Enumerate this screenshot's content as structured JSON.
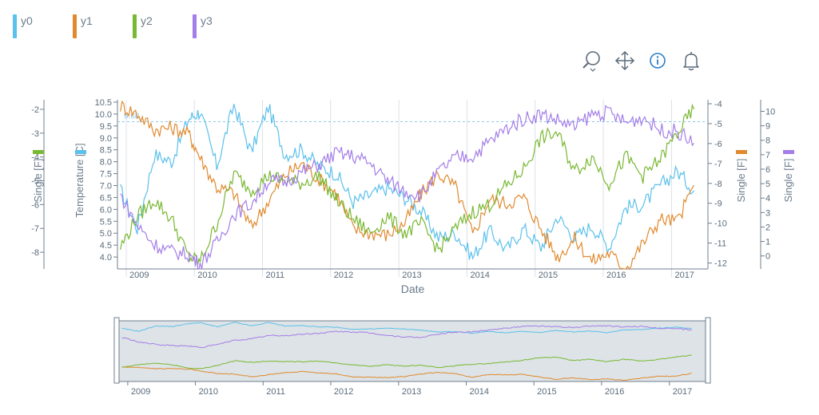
{
  "legend": [
    {
      "name": "y0",
      "color": "#5bc0eb"
    },
    {
      "name": "y1",
      "color": "#e08a2f"
    },
    {
      "name": "y2",
      "color": "#79b832"
    },
    {
      "name": "y3",
      "color": "#a47ee8"
    }
  ],
  "toolbar": [
    {
      "name": "zoom-tool",
      "icon": "magnifier-icon"
    },
    {
      "name": "pan-tool",
      "icon": "move-arrows-icon"
    },
    {
      "name": "info-tool",
      "icon": "info-circle-icon"
    },
    {
      "name": "alert-tool",
      "icon": "bell-icon"
    }
  ],
  "chart_data": {
    "type": "line",
    "xlabel": "Date",
    "x_ticks": [
      "2009",
      "2010",
      "2011",
      "2012",
      "2013",
      "2014",
      "2015",
      "2016",
      "2017"
    ],
    "xlim": [
      "2008-11-15",
      "2017-07-15"
    ],
    "reference_line": {
      "value": 9.68,
      "label": "9.68",
      "axis": "y0"
    },
    "axes": [
      {
        "id": "y2",
        "label": "Single [F]",
        "range": [
          -8.7,
          -1.6
        ],
        "ticks": [
          -8,
          -7,
          -6,
          -5,
          -4,
          -3,
          -2
        ],
        "side": "left",
        "color": "#79b832"
      },
      {
        "id": "y0",
        "label": "Temperature [C]",
        "range": [
          3.5,
          10.6
        ],
        "ticks": [
          4.0,
          4.5,
          5.0,
          5.5,
          6.0,
          6.5,
          7.0,
          7.5,
          8.0,
          8.5,
          9.0,
          9.5,
          10.0,
          10.5
        ],
        "side": "left",
        "color": "#5bc0eb"
      },
      {
        "id": "y1",
        "label": "Single [F]",
        "range": [
          -12.3,
          -3.8
        ],
        "ticks": [
          -12,
          -11,
          -10,
          -9,
          -8,
          -7,
          -6,
          -5,
          -4
        ],
        "side": "right",
        "color": "#e08a2f"
      },
      {
        "id": "y3",
        "label": "Single [F]",
        "range": [
          -0.9,
          10.8
        ],
        "ticks": [
          0,
          1,
          2,
          3,
          4,
          5,
          6,
          7,
          8,
          9,
          10
        ],
        "side": "right",
        "color": "#a47ee8"
      }
    ],
    "series": [
      {
        "name": "y0",
        "axis": "y0",
        "color": "#5bc0eb",
        "points": [
          [
            "2008-12-01",
            6.8
          ],
          [
            "2009-03-01",
            5.2
          ],
          [
            "2009-06-01",
            8.3
          ],
          [
            "2009-09-01",
            8.0
          ],
          [
            "2009-12-01",
            9.8
          ],
          [
            "2010-02-01",
            10.1
          ],
          [
            "2010-05-01",
            7.8
          ],
          [
            "2010-08-01",
            10.4
          ],
          [
            "2010-11-01",
            8.4
          ],
          [
            "2011-02-01",
            10.3
          ],
          [
            "2011-05-01",
            8.3
          ],
          [
            "2011-08-01",
            8.5
          ],
          [
            "2011-11-01",
            7.8
          ],
          [
            "2012-02-01",
            7.5
          ],
          [
            "2012-05-01",
            6.3
          ],
          [
            "2012-08-01",
            6.6
          ],
          [
            "2012-11-01",
            6.9
          ],
          [
            "2013-02-01",
            6.5
          ],
          [
            "2013-05-01",
            5.9
          ],
          [
            "2013-08-01",
            4.8
          ],
          [
            "2013-11-01",
            5.0
          ],
          [
            "2014-02-01",
            4.0
          ],
          [
            "2014-05-01",
            5.1
          ],
          [
            "2014-08-01",
            4.3
          ],
          [
            "2014-11-01",
            5.2
          ],
          [
            "2015-02-01",
            4.4
          ],
          [
            "2015-05-01",
            5.7
          ],
          [
            "2015-08-01",
            4.8
          ],
          [
            "2015-11-01",
            5.3
          ],
          [
            "2016-02-01",
            4.4
          ],
          [
            "2016-05-01",
            6.1
          ],
          [
            "2016-08-01",
            6.2
          ],
          [
            "2016-11-01",
            7.0
          ],
          [
            "2017-02-01",
            7.6
          ],
          [
            "2017-05-01",
            6.8
          ]
        ]
      },
      {
        "name": "y1",
        "axis": "y1",
        "color": "#e08a2f",
        "points": [
          [
            "2008-12-01",
            -4.1
          ],
          [
            "2009-03-01",
            -4.5
          ],
          [
            "2009-06-01",
            -5.3
          ],
          [
            "2009-09-01",
            -5.2
          ],
          [
            "2009-12-01",
            -5.5
          ],
          [
            "2010-02-01",
            -6.7
          ],
          [
            "2010-05-01",
            -8.2
          ],
          [
            "2010-08-01",
            -8.5
          ],
          [
            "2010-11-01",
            -10.2
          ],
          [
            "2011-02-01",
            -8.9
          ],
          [
            "2011-05-01",
            -7.6
          ],
          [
            "2011-08-01",
            -7.0
          ],
          [
            "2011-11-01",
            -7.8
          ],
          [
            "2012-02-01",
            -8.5
          ],
          [
            "2012-05-01",
            -10.3
          ],
          [
            "2012-08-01",
            -10.5
          ],
          [
            "2012-11-01",
            -10.6
          ],
          [
            "2013-02-01",
            -10.0
          ],
          [
            "2013-05-01",
            -8.5
          ],
          [
            "2013-08-01",
            -7.5
          ],
          [
            "2013-11-01",
            -8.2
          ],
          [
            "2014-02-01",
            -10.6
          ],
          [
            "2014-05-01",
            -8.8
          ],
          [
            "2014-08-01",
            -9.0
          ],
          [
            "2014-11-01",
            -8.7
          ],
          [
            "2015-02-01",
            -10.3
          ],
          [
            "2015-05-01",
            -11.7
          ],
          [
            "2015-08-01",
            -10.8
          ],
          [
            "2015-11-01",
            -11.9
          ],
          [
            "2016-02-01",
            -11.5
          ],
          [
            "2016-05-01",
            -12.3
          ],
          [
            "2016-08-01",
            -11.0
          ],
          [
            "2016-11-01",
            -9.8
          ],
          [
            "2017-02-01",
            -9.9
          ],
          [
            "2017-05-01",
            -8.1
          ]
        ]
      },
      {
        "name": "y2",
        "axis": "y2",
        "color": "#79b832",
        "points": [
          [
            "2008-12-01",
            -7.8
          ],
          [
            "2009-03-01",
            -6.5
          ],
          [
            "2009-06-01",
            -5.8
          ],
          [
            "2009-09-01",
            -6.6
          ],
          [
            "2009-12-01",
            -8.2
          ],
          [
            "2010-02-01",
            -8.4
          ],
          [
            "2010-05-01",
            -6.8
          ],
          [
            "2010-08-01",
            -4.7
          ],
          [
            "2010-11-01",
            -5.4
          ],
          [
            "2011-02-01",
            -4.8
          ],
          [
            "2011-05-01",
            -5.0
          ],
          [
            "2011-08-01",
            -5.1
          ],
          [
            "2011-11-01",
            -4.8
          ],
          [
            "2012-02-01",
            -5.8
          ],
          [
            "2012-05-01",
            -6.6
          ],
          [
            "2012-08-01",
            -7.2
          ],
          [
            "2012-11-01",
            -6.5
          ],
          [
            "2013-02-01",
            -7.2
          ],
          [
            "2013-05-01",
            -6.8
          ],
          [
            "2013-08-01",
            -7.9
          ],
          [
            "2013-11-01",
            -7.0
          ],
          [
            "2014-02-01",
            -6.3
          ],
          [
            "2014-05-01",
            -6.0
          ],
          [
            "2014-08-01",
            -5.2
          ],
          [
            "2014-11-01",
            -4.5
          ],
          [
            "2015-02-01",
            -3.2
          ],
          [
            "2015-05-01",
            -3.0
          ],
          [
            "2015-08-01",
            -4.6
          ],
          [
            "2015-11-01",
            -4.0
          ],
          [
            "2016-02-01",
            -5.1
          ],
          [
            "2016-05-01",
            -4.0
          ],
          [
            "2016-08-01",
            -4.8
          ],
          [
            "2016-11-01",
            -4.1
          ],
          [
            "2017-02-01",
            -3.0
          ],
          [
            "2017-05-01",
            -2.0
          ]
        ]
      },
      {
        "name": "y3",
        "axis": "y3",
        "color": "#a47ee8",
        "points": [
          [
            "2008-12-01",
            4.2
          ],
          [
            "2009-03-01",
            2.1
          ],
          [
            "2009-06-01",
            0.8
          ],
          [
            "2009-09-01",
            0.3
          ],
          [
            "2009-12-01",
            0.1
          ],
          [
            "2010-02-01",
            -0.6
          ],
          [
            "2010-05-01",
            0.9
          ],
          [
            "2010-08-01",
            2.9
          ],
          [
            "2010-11-01",
            3.6
          ],
          [
            "2011-02-01",
            5.2
          ],
          [
            "2011-05-01",
            5.1
          ],
          [
            "2011-08-01",
            5.8
          ],
          [
            "2011-11-01",
            6.3
          ],
          [
            "2012-02-01",
            7.1
          ],
          [
            "2012-05-01",
            6.9
          ],
          [
            "2012-08-01",
            6.4
          ],
          [
            "2012-11-01",
            5.2
          ],
          [
            "2013-02-01",
            4.5
          ],
          [
            "2013-05-01",
            4.2
          ],
          [
            "2013-08-01",
            5.8
          ],
          [
            "2013-11-01",
            6.8
          ],
          [
            "2014-02-01",
            6.9
          ],
          [
            "2014-05-01",
            7.9
          ],
          [
            "2014-08-01",
            8.8
          ],
          [
            "2014-11-01",
            9.5
          ],
          [
            "2015-02-01",
            9.8
          ],
          [
            "2015-05-01",
            9.4
          ],
          [
            "2015-08-01",
            8.9
          ],
          [
            "2015-11-01",
            9.8
          ],
          [
            "2016-02-01",
            9.9
          ],
          [
            "2016-05-01",
            9.2
          ],
          [
            "2016-08-01",
            9.6
          ],
          [
            "2016-11-01",
            8.7
          ],
          [
            "2017-02-01",
            8.6
          ],
          [
            "2017-05-01",
            7.8
          ]
        ]
      }
    ],
    "range_selector": {
      "ticks": [
        "2009",
        "2010",
        "2011",
        "2012",
        "2013",
        "2014",
        "2015",
        "2016",
        "2017"
      ]
    }
  }
}
